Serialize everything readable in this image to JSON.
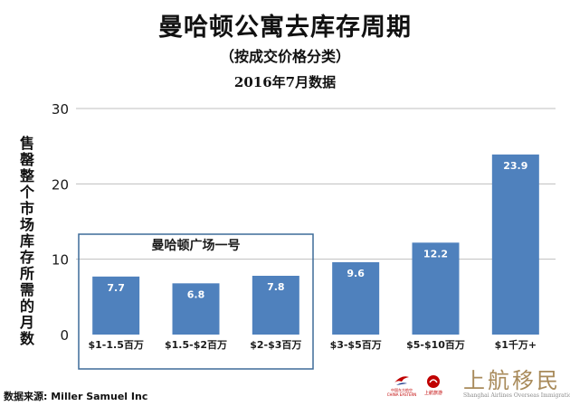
{
  "header": {
    "title": "曼哈顿公寓去库存周期",
    "subtitle": "（按成交价格分类）",
    "date": "2016年7月数据"
  },
  "highlight_label": "曼哈顿广场一号",
  "footer": {
    "source": "数据来源: Miller Samuel Inc",
    "logo_china_eastern": "中国东方航空",
    "logo_china_eastern_en": "CHINA EASTERN",
    "logo_partner": "上航旅游",
    "brand_name": "上航移民",
    "brand_sub": "Shanghai Airlines Overseas Immigration"
  },
  "colors": {
    "bar": "#4f81bd",
    "grid": "#bfbfbf",
    "highlight_box": "#3d6b99",
    "text": "#1a1a1a",
    "logo_red": "#c00000",
    "brand_gold": "#a88a5a"
  },
  "chart_data": {
    "type": "bar",
    "title": "曼哈顿公寓去库存周期",
    "subtitle": "（按成交价格分类）",
    "xlabel": "",
    "ylabel": "售罄整个市场库存所需的月数",
    "categories": [
      "$1-1.5百万",
      "$1.5-$2百万",
      "$2-$3百万",
      "$3-$5百万",
      "$5-$10百万",
      "$1千万+"
    ],
    "values": [
      7.7,
      6.8,
      7.8,
      9.6,
      12.2,
      23.9
    ],
    "ylim": [
      0,
      30
    ],
    "yticks": [
      0,
      10,
      20,
      30
    ],
    "grid": true,
    "data_labels": true,
    "highlighted_categories": [
      0,
      1,
      2
    ]
  }
}
